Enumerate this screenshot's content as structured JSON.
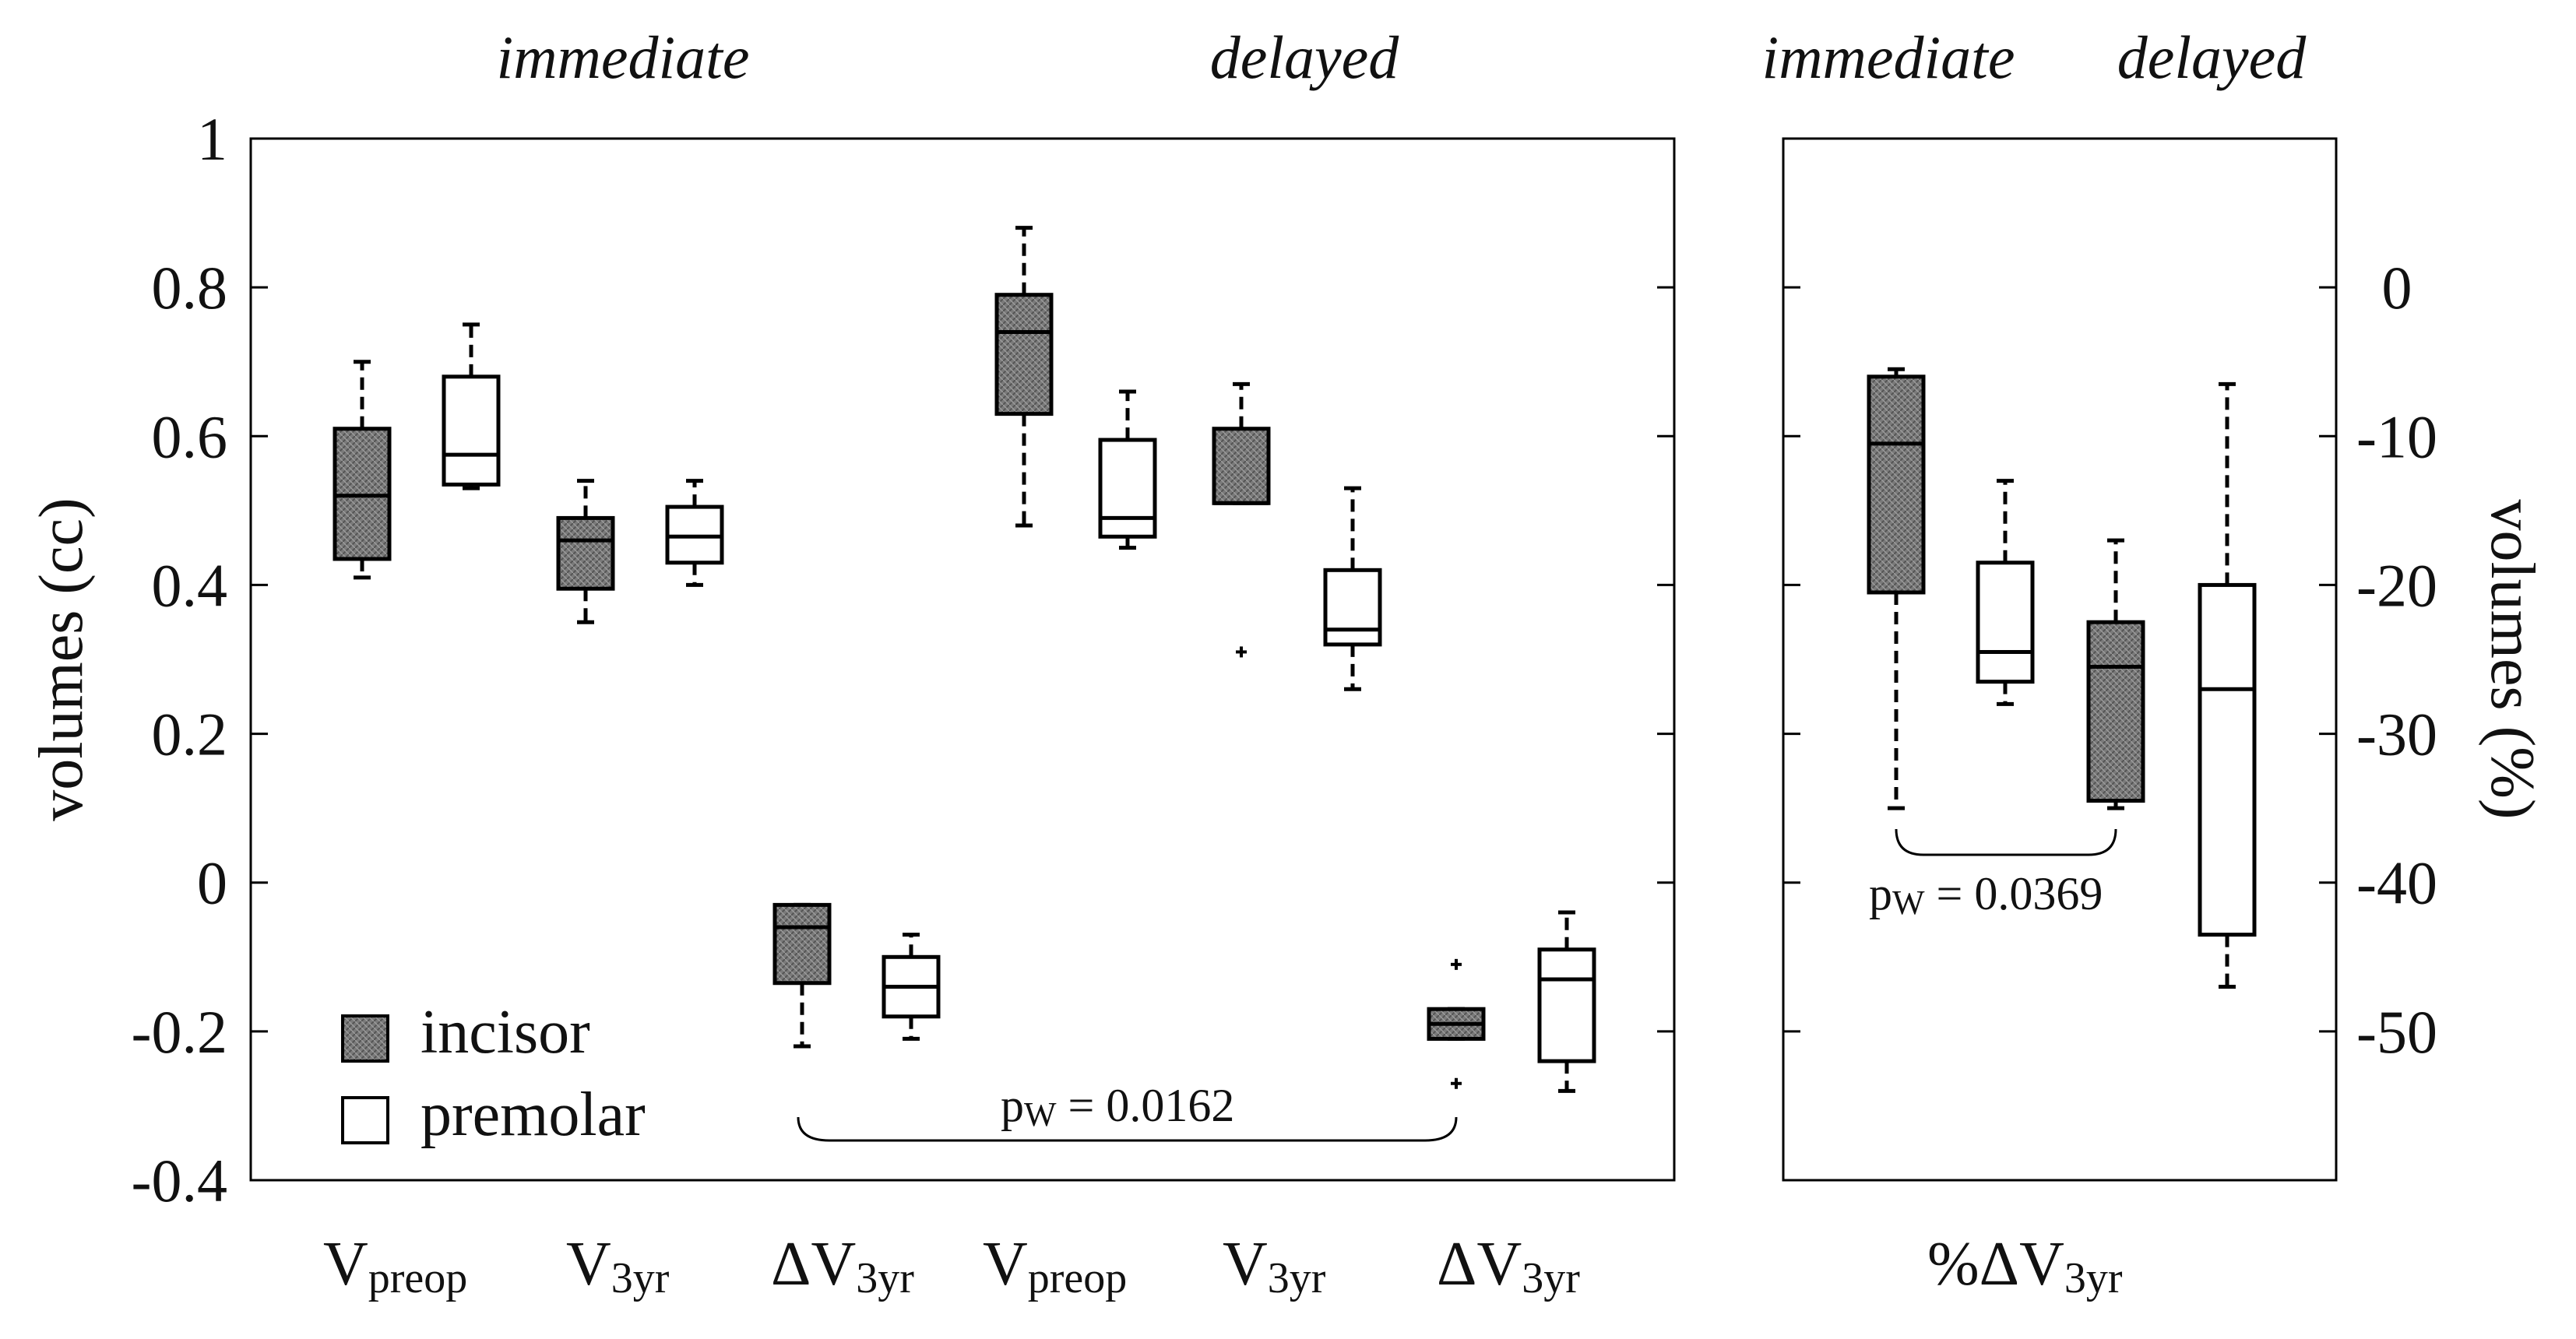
{
  "chart_data": {
    "type": "boxplot",
    "colors": {
      "incisor": "#7a7a7a",
      "premolar": "#ffffff",
      "stroke": "#000000"
    },
    "group_headers": {
      "immediate_left": "immediate",
      "delayed_left": "delayed",
      "immediate_right": "immediate",
      "delayed_right": "delayed"
    },
    "left_axis": {
      "label": "volumes (cc)",
      "ylim": [
        -0.4,
        1.0
      ],
      "ticks": [
        "-0.4",
        "-0.2",
        "0",
        "0.2",
        "0.4",
        "0.6",
        "0.8",
        "1"
      ]
    },
    "right_axis": {
      "label": "volumes (%)",
      "ylim": [
        -60,
        10
      ],
      "ticks": [
        "-50",
        "-40",
        "-30",
        "-20",
        "-10",
        "0"
      ]
    },
    "legend": [
      {
        "name": "incisor",
        "fill": "#7a7a7a"
      },
      {
        "name": "premolar",
        "fill": "#ffffff"
      }
    ],
    "x_groups_left": [
      {
        "main": "V",
        "sub": "preop"
      },
      {
        "main": "V",
        "sub": "3yr"
      },
      {
        "main": "ΔV",
        "sub": "3yr"
      },
      {
        "main": "V",
        "sub": "preop"
      },
      {
        "main": "V",
        "sub": "3yr"
      },
      {
        "main": "ΔV",
        "sub": "3yr"
      }
    ],
    "x_group_right": {
      "main": "%ΔV",
      "sub": "3yr"
    },
    "left_boxes": [
      {
        "timing": "immediate",
        "variable": "Vpreop",
        "type": "incisor",
        "min": 0.41,
        "q1": 0.435,
        "median": 0.52,
        "q3": 0.61,
        "max": 0.7,
        "outliers": []
      },
      {
        "timing": "immediate",
        "variable": "Vpreop",
        "type": "premolar",
        "min": 0.53,
        "q1": 0.535,
        "median": 0.575,
        "q3": 0.68,
        "max": 0.75,
        "outliers": []
      },
      {
        "timing": "immediate",
        "variable": "V3yr",
        "type": "incisor",
        "min": 0.35,
        "q1": 0.395,
        "median": 0.46,
        "q3": 0.49,
        "max": 0.54,
        "outliers": []
      },
      {
        "timing": "immediate",
        "variable": "V3yr",
        "type": "premolar",
        "min": 0.4,
        "q1": 0.43,
        "median": 0.465,
        "q3": 0.505,
        "max": 0.54,
        "outliers": []
      },
      {
        "timing": "immediate",
        "variable": "ΔV3yr",
        "type": "incisor",
        "min": -0.22,
        "q1": -0.135,
        "median": -0.06,
        "q3": -0.03,
        "max": -0.03,
        "outliers": []
      },
      {
        "timing": "immediate",
        "variable": "ΔV3yr",
        "type": "premolar",
        "min": -0.21,
        "q1": -0.18,
        "median": -0.14,
        "q3": -0.1,
        "max": -0.07,
        "outliers": []
      },
      {
        "timing": "delayed",
        "variable": "Vpreop",
        "type": "incisor",
        "min": 0.48,
        "q1": 0.63,
        "median": 0.74,
        "q3": 0.79,
        "max": 0.88,
        "outliers": []
      },
      {
        "timing": "delayed",
        "variable": "Vpreop",
        "type": "premolar",
        "min": 0.45,
        "q1": 0.465,
        "median": 0.49,
        "q3": 0.595,
        "max": 0.66,
        "outliers": []
      },
      {
        "timing": "delayed",
        "variable": "V3yr",
        "type": "incisor",
        "min": 0.51,
        "q1": 0.51,
        "median": 0.51,
        "q3": 0.61,
        "max": 0.67,
        "outliers": [
          0.31
        ]
      },
      {
        "timing": "delayed",
        "variable": "V3yr",
        "type": "premolar",
        "min": 0.26,
        "q1": 0.32,
        "median": 0.34,
        "q3": 0.42,
        "max": 0.53,
        "outliers": []
      },
      {
        "timing": "delayed",
        "variable": "ΔV3yr",
        "type": "incisor",
        "min": -0.21,
        "q1": -0.21,
        "median": -0.19,
        "q3": -0.17,
        "max": -0.17,
        "outliers": [
          -0.11,
          -0.27
        ]
      },
      {
        "timing": "delayed",
        "variable": "ΔV3yr",
        "type": "premolar",
        "min": -0.28,
        "q1": -0.24,
        "median": -0.13,
        "q3": -0.09,
        "max": -0.04,
        "outliers": []
      }
    ],
    "right_boxes": [
      {
        "timing": "immediate",
        "variable": "%ΔV3yr",
        "type": "incisor",
        "min": -35,
        "q1": -20.5,
        "median": -10.5,
        "q3": -6.0,
        "max": -5.5,
        "outliers": []
      },
      {
        "timing": "immediate",
        "variable": "%ΔV3yr",
        "type": "premolar",
        "min": -28,
        "q1": -26.5,
        "median": -24.5,
        "q3": -18.5,
        "max": -13,
        "outliers": []
      },
      {
        "timing": "delayed",
        "variable": "%ΔV3yr",
        "type": "incisor",
        "min": -35,
        "q1": -34.5,
        "median": -25.5,
        "q3": -22.5,
        "max": -17,
        "outliers": []
      },
      {
        "timing": "delayed",
        "variable": "%ΔV3yr",
        "type": "premolar",
        "min": -47,
        "q1": -43.5,
        "median": -27,
        "q3": -20,
        "max": -6.5,
        "outliers": []
      }
    ],
    "annotations": [
      {
        "text": "p",
        "sub": "W",
        "value": " = 0.0162",
        "between": "immediate ΔV3yr incisor vs delayed ΔV3yr incisor"
      },
      {
        "text": "p",
        "sub": "W",
        "value": " = 0.0369",
        "between": "immediate %ΔV3yr incisor vs delayed %ΔV3yr incisor"
      }
    ]
  }
}
